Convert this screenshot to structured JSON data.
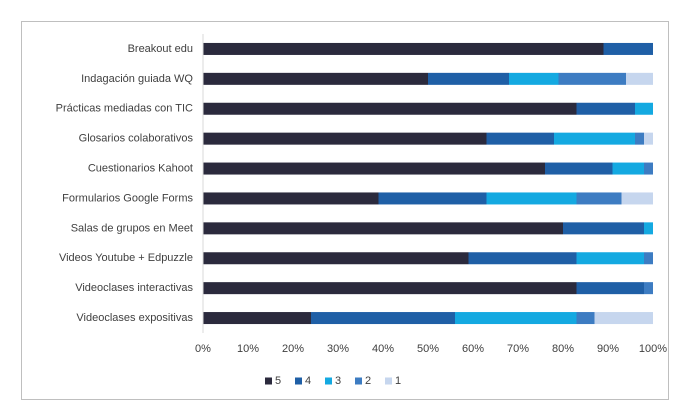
{
  "chart_data": {
    "type": "stacked_bar_horizontal",
    "categories": [
      "Breakout edu",
      "Indagación guiada WQ",
      "Prácticas mediadas con TIC",
      "Glosarios colaborativos",
      "Cuestionarios Kahoot",
      "Formularios Google Forms",
      "Salas de grupos en Meet",
      "Videos Youtube + Edpuzzle",
      "Videoclases interactivas",
      "Videoclases expositivas"
    ],
    "series": [
      {
        "name": "5",
        "color": "#2b2a3d",
        "values": [
          89,
          50,
          83,
          63,
          76,
          39,
          80,
          59,
          83,
          24
        ]
      },
      {
        "name": "4",
        "color": "#1f5fa6",
        "values": [
          11,
          18,
          13,
          15,
          15,
          24,
          18,
          24,
          15,
          32
        ]
      },
      {
        "name": "3",
        "color": "#14a9e1",
        "values": [
          0,
          11,
          4,
          18,
          7,
          20,
          2,
          15,
          0,
          27
        ]
      },
      {
        "name": "2",
        "color": "#3d7cc2",
        "values": [
          0,
          15,
          0,
          2,
          2,
          10,
          0,
          2,
          2,
          4
        ]
      },
      {
        "name": "1",
        "color": "#c6d6ee",
        "values": [
          0,
          6,
          0,
          2,
          0,
          7,
          0,
          0,
          0,
          13
        ]
      }
    ],
    "xlim": [
      0,
      100
    ],
    "xticks": [
      {
        "value": 0,
        "label": "0%"
      },
      {
        "value": 10,
        "label": "10%"
      },
      {
        "value": 20,
        "label": "20%"
      },
      {
        "value": 30,
        "label": "30%"
      },
      {
        "value": 40,
        "label": "40%"
      },
      {
        "value": 50,
        "label": "50%"
      },
      {
        "value": 60,
        "label": "60%"
      },
      {
        "value": 70,
        "label": "70%"
      },
      {
        "value": 80,
        "label": "80%"
      },
      {
        "value": 90,
        "label": "90%"
      },
      {
        "value": 100,
        "label": "100%"
      }
    ],
    "legend": "bottom"
  }
}
